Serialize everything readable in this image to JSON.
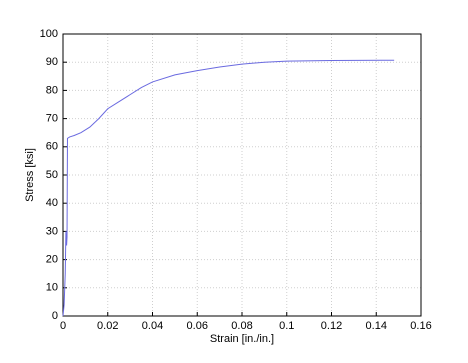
{
  "chart_data": {
    "type": "line",
    "xlabel": "Strain [in./in.]",
    "ylabel": "Stress [ksi]",
    "x": [
      0,
      0.0005,
      0.001,
      0.0013,
      0.0016,
      0.0018,
      0.002,
      0.003,
      0.005,
      0.008,
      0.012,
      0.016,
      0.02,
      0.025,
      0.03,
      0.035,
      0.04,
      0.05,
      0.06,
      0.07,
      0.08,
      0.09,
      0.1,
      0.12,
      0.148
    ],
    "values": [
      0,
      4,
      15,
      30,
      25,
      28,
      63,
      63.5,
      64,
      65,
      67,
      70,
      73.5,
      76,
      78.5,
      81,
      83,
      85.5,
      87,
      88.3,
      89.3,
      90,
      90.4,
      90.6,
      90.7
    ],
    "color": "#6a6ae0",
    "xlim": [
      0,
      0.16
    ],
    "xticks": [
      0,
      0.02,
      0.04,
      0.06,
      0.08,
      0.1,
      0.12,
      0.14,
      0.16
    ],
    "ylim": [
      0,
      100
    ],
    "yticks": [
      0,
      10,
      20,
      30,
      40,
      50,
      60,
      70,
      80,
      90,
      100
    ],
    "grid": true
  }
}
